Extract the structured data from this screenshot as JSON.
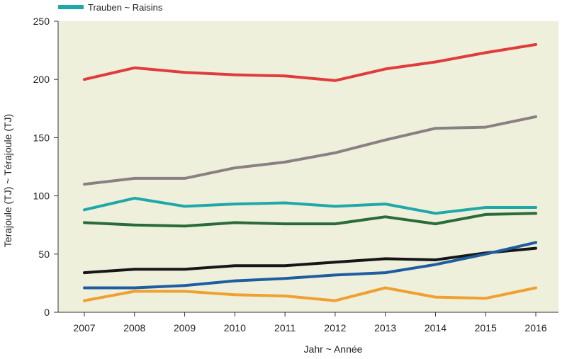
{
  "chart_data": {
    "type": "line",
    "categories": [
      "2007",
      "2008",
      "2009",
      "2010",
      "2011",
      "2012",
      "2013",
      "2014",
      "2015",
      "2016"
    ],
    "ylabel": "Terajoule (TJ) ~ Térajoule (TJ)",
    "xlabel": "Jahr ~ Année",
    "ylim": [
      0,
      250
    ],
    "yticks": [
      0,
      50,
      100,
      150,
      200,
      250
    ],
    "grid": false,
    "legend_position": "top-left",
    "plot_background": "#eef0dc",
    "series": [
      {
        "name": "",
        "color": "#e03c3c",
        "values": [
          200,
          210,
          206,
          204,
          203,
          199,
          209,
          215,
          223,
          230
        ]
      },
      {
        "name": "",
        "color": "#8a8082",
        "values": [
          110,
          115,
          115,
          124,
          129,
          137,
          148,
          158,
          159,
          168
        ]
      },
      {
        "name": "Trauben ~ Raisins",
        "color": "#20a8a8",
        "values": [
          88,
          98,
          91,
          93,
          94,
          91,
          93,
          85,
          90,
          90
        ]
      },
      {
        "name": "",
        "color": "#2a6b3a",
        "values": [
          77,
          75,
          74,
          77,
          76,
          76,
          82,
          76,
          84,
          85
        ]
      },
      {
        "name": "",
        "color": "#161616",
        "values": [
          34,
          37,
          37,
          40,
          40,
          43,
          46,
          45,
          51,
          55
        ]
      },
      {
        "name": "",
        "color": "#1f5da0",
        "values": [
          21,
          21,
          23,
          27,
          29,
          32,
          34,
          41,
          50,
          60
        ]
      },
      {
        "name": "",
        "color": "#f0a030",
        "values": [
          10,
          18,
          18,
          15,
          14,
          10,
          21,
          13,
          12,
          21
        ]
      }
    ]
  }
}
